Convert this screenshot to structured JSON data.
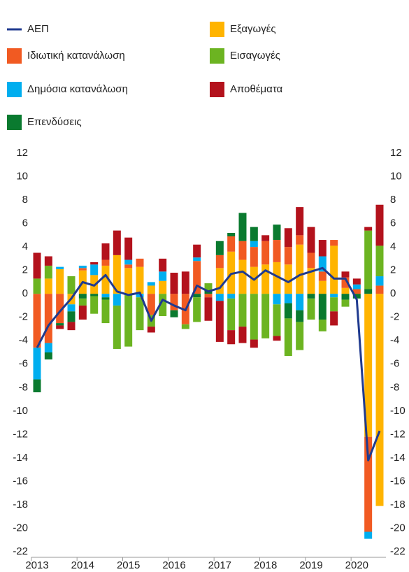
{
  "chart_data": {
    "type": "bar",
    "stacked": true,
    "categories": [
      "2013",
      null,
      null,
      null,
      "2014",
      null,
      null,
      null,
      "2015",
      null,
      null,
      null,
      "2016",
      null,
      null,
      null,
      "2017",
      null,
      null,
      null,
      "2018",
      null,
      null,
      null,
      "2019",
      null,
      null,
      null,
      "2020",
      null,
      null
    ],
    "series": [
      {
        "name": "ΑΕΠ",
        "type": "line",
        "color": "#1f3a8f",
        "values": [
          -4.6,
          -2.7,
          -1.5,
          -0.4,
          1.0,
          0.7,
          1.6,
          0.2,
          -0.1,
          0.1,
          -2.3,
          -0.5,
          -1.0,
          -1.4,
          0.7,
          0.2,
          0.5,
          1.7,
          1.9,
          1.2,
          2.0,
          1.5,
          1.0,
          1.6,
          1.9,
          2.2,
          1.3,
          1.3,
          -0.5,
          -14.2,
          -11.7
        ]
      },
      {
        "name": "Ιδιωτική κατανάλωση",
        "color": "#f15a22",
        "values": [
          -4.6,
          -4.2,
          -2.5,
          0,
          0.2,
          0,
          0.5,
          0,
          0.3,
          0.7,
          -1.8,
          0,
          -1.4,
          -2.6,
          2.8,
          -0.3,
          1.1,
          1.3,
          1.6,
          1.7,
          2.0,
          1.9,
          1.5,
          0.8,
          1.3,
          0.8,
          0.5,
          0.9,
          0.4,
          -8.1,
          0.7
        ]
      },
      {
        "name": "Δημόσια κατανάλωση",
        "color": "#00aeef",
        "values": [
          -2.7,
          -0.8,
          0.2,
          -0.6,
          0.2,
          0.9,
          -0.3,
          -1.0,
          0.4,
          -0.3,
          0.3,
          0.8,
          0,
          0,
          0.3,
          0,
          -0.6,
          -0.4,
          0,
          0.5,
          0,
          -0.9,
          -0.8,
          -1.4,
          0,
          1.3,
          -0.3,
          0,
          0.4,
          -0.6,
          0.8
        ]
      },
      {
        "name": "Επενδύσεις",
        "color": "#0a7a2f",
        "values": [
          -1.1,
          -0.6,
          -0.2,
          -0.9,
          -0.4,
          -0.2,
          -0.2,
          0,
          0,
          0,
          0,
          0,
          -0.6,
          0,
          -0.3,
          0.3,
          1.2,
          0.3,
          2.4,
          1.2,
          0,
          1.3,
          -1.3,
          -1.0,
          -0.4,
          -2.2,
          0,
          -0.5,
          -0.4,
          0.4,
          0
        ]
      },
      {
        "name": "Εξαγωγές",
        "color": "#ffb400",
        "values": [
          0,
          1.3,
          2.1,
          -0.9,
          2.0,
          1.6,
          2.4,
          3.3,
          2.2,
          2.3,
          0.7,
          1.1,
          0,
          0,
          0,
          0,
          2.2,
          3.6,
          2.9,
          2.3,
          2.5,
          2.7,
          2.5,
          4.2,
          2.2,
          1.1,
          4.1,
          0.5,
          0,
          -12.2,
          -18.1
        ]
      },
      {
        "name": "Εισαγωγές",
        "color": "#6cb421",
        "values": [
          1.3,
          1.1,
          0,
          1.5,
          -0.6,
          -1.5,
          -2.0,
          -3.7,
          -4.5,
          -2.8,
          -1.0,
          -1.9,
          0,
          -0.4,
          -2.1,
          0.6,
          0,
          -2.7,
          -2.8,
          -3.9,
          -3.8,
          -2.7,
          -3.2,
          -2.4,
          -1.8,
          -1.0,
          -1.2,
          -0.6,
          0,
          5.0,
          2.6
        ]
      },
      {
        "name": "Αποθέματα",
        "color": "#b3121c",
        "values": [
          2.2,
          0.8,
          -0.3,
          -0.7,
          -1.2,
          0.2,
          1.4,
          2.1,
          1.9,
          0,
          -0.5,
          1.1,
          1.8,
          1.9,
          1.1,
          -2.0,
          -3.5,
          -1.2,
          -1.4,
          -0.7,
          0.5,
          -0.4,
          1.6,
          2.4,
          2.2,
          1.4,
          -1.2,
          0.5,
          0.5,
          0.3,
          3.5
        ]
      }
    ],
    "ylim": [
      -22,
      12
    ],
    "yticks": [
      12,
      10,
      8,
      6,
      4,
      2,
      0,
      -2,
      -4,
      -6,
      -8,
      -10,
      -12,
      -14,
      -16,
      -18,
      -20,
      -22
    ]
  }
}
